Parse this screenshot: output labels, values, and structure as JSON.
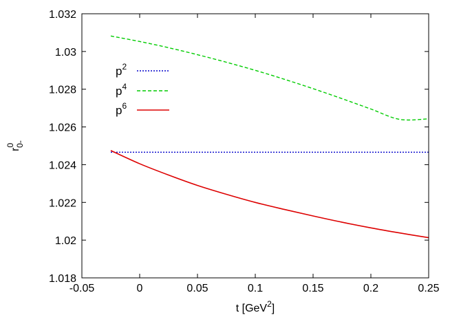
{
  "chart_data": {
    "type": "line",
    "xlabel": {
      "base": "t [GeV",
      "sup": "2",
      "end": "]"
    },
    "ylabel": {
      "base": "r",
      "sup": "0",
      "sub": "0-"
    },
    "xlim": [
      -0.05,
      0.25
    ],
    "ylim": [
      1.018,
      1.032
    ],
    "x_ticks": [
      {
        "value": -0.05,
        "label": "-0.05"
      },
      {
        "value": 0,
        "label": "0"
      },
      {
        "value": 0.05,
        "label": "0.05"
      },
      {
        "value": 0.1,
        "label": "0.1"
      },
      {
        "value": 0.15,
        "label": "0.15"
      },
      {
        "value": 0.2,
        "label": "0.2"
      },
      {
        "value": 0.25,
        "label": "0.25"
      }
    ],
    "y_ticks": [
      {
        "value": 1.018,
        "label": "1.018"
      },
      {
        "value": 1.02,
        "label": "1.02"
      },
      {
        "value": 1.022,
        "label": "1.022"
      },
      {
        "value": 1.024,
        "label": "1.024"
      },
      {
        "value": 1.026,
        "label": "1.026"
      },
      {
        "value": 1.028,
        "label": "1.028"
      },
      {
        "value": 1.03,
        "label": "1.03"
      },
      {
        "value": 1.032,
        "label": "1.032"
      }
    ],
    "grid": false,
    "legend_position": "upper-left",
    "series": [
      {
        "name": {
          "base": "p",
          "sup": "2"
        },
        "color": "#0000cc",
        "dash": "dotted",
        "x": [
          -0.025,
          0.25
        ],
        "y": [
          1.02466,
          1.02466
        ]
      },
      {
        "name": {
          "base": "p",
          "sup": "4"
        },
        "color": "#00cc00",
        "dash": "dashed",
        "x": [
          -0.025,
          0.0,
          0.025,
          0.05,
          0.075,
          0.1,
          0.125,
          0.15,
          0.175,
          0.2,
          0.225,
          0.25
        ],
        "y": [
          1.03082,
          1.03053,
          1.0302,
          1.02983,
          1.02943,
          1.029,
          1.02853,
          1.02803,
          1.0275,
          1.02695,
          1.0264,
          1.02643
        ]
      },
      {
        "name": {
          "base": "p",
          "sup": "6"
        },
        "color": "#dd0000",
        "dash": "solid",
        "x": [
          -0.025,
          0.0,
          0.025,
          0.05,
          0.075,
          0.1,
          0.125,
          0.15,
          0.175,
          0.2,
          0.225,
          0.25
        ],
        "y": [
          1.02475,
          1.02405,
          1.02345,
          1.0229,
          1.02243,
          1.022,
          1.02163,
          1.02128,
          1.02095,
          1.02065,
          1.02038,
          1.02013
        ]
      }
    ]
  }
}
